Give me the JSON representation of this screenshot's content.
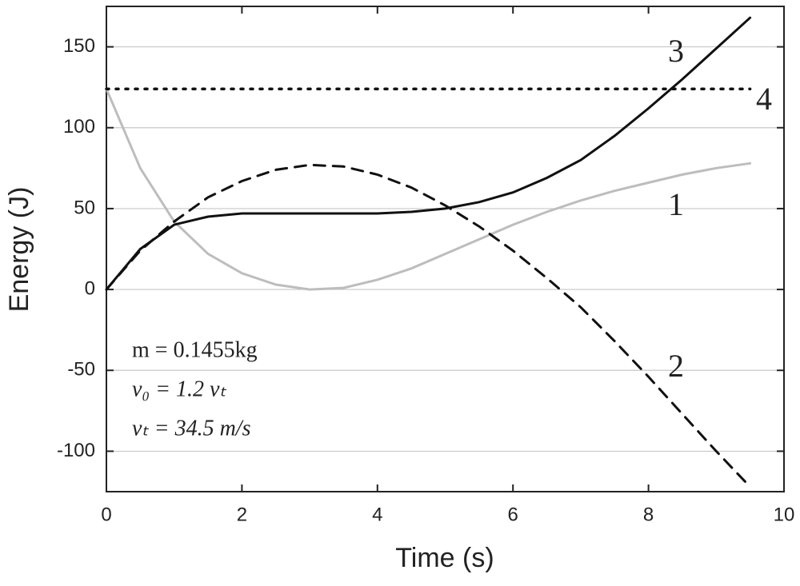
{
  "chart_data": {
    "type": "line",
    "x_label": "Time (s)",
    "y_label": "Energy (J)",
    "x": [
      0,
      0.5,
      1,
      1.5,
      2,
      2.5,
      3,
      3.5,
      4,
      4.5,
      5,
      5.5,
      6,
      6.5,
      7,
      7.5,
      8,
      8.5,
      9,
      9.5
    ],
    "series": [
      {
        "name": "1",
        "color": "#bdbdbd",
        "dash": "solid",
        "values": [
          124,
          75,
          42,
          22,
          10,
          3,
          0,
          1,
          6,
          13,
          22,
          31,
          40,
          48,
          55,
          61,
          66,
          71,
          75,
          78
        ]
      },
      {
        "name": "2",
        "color": "#111111",
        "dash": "dashed",
        "values": [
          0,
          24,
          42,
          57,
          67,
          74,
          77,
          76,
          71,
          63,
          52,
          39,
          24,
          7,
          -11,
          -32,
          -54,
          -77,
          -100,
          -122
        ]
      },
      {
        "name": "3",
        "color": "#111111",
        "dash": "solid",
        "values": [
          0,
          25,
          40,
          45,
          47,
          47,
          47,
          47,
          47,
          48,
          50,
          54,
          60,
          69,
          80,
          95,
          112,
          130,
          149,
          168
        ]
      },
      {
        "name": "4",
        "color": "#111111",
        "dash": "dotted",
        "values": [
          124,
          124,
          124,
          124,
          124,
          124,
          124,
          124,
          124,
          124,
          124,
          124,
          124,
          124,
          124,
          124,
          124,
          124,
          124,
          124
        ]
      }
    ],
    "annotations": [
      "m = 0.1455kg",
      "v₀ = 1.2 vₜ",
      "vₜ = 34.5 m/s"
    ],
    "xlim": [
      0,
      10
    ],
    "xticks": [
      0,
      2,
      4,
      6,
      8,
      10
    ],
    "ylim": [
      -125,
      175
    ],
    "yticks": [
      -100,
      -50,
      0,
      50,
      100,
      150
    ],
    "grid": true
  }
}
